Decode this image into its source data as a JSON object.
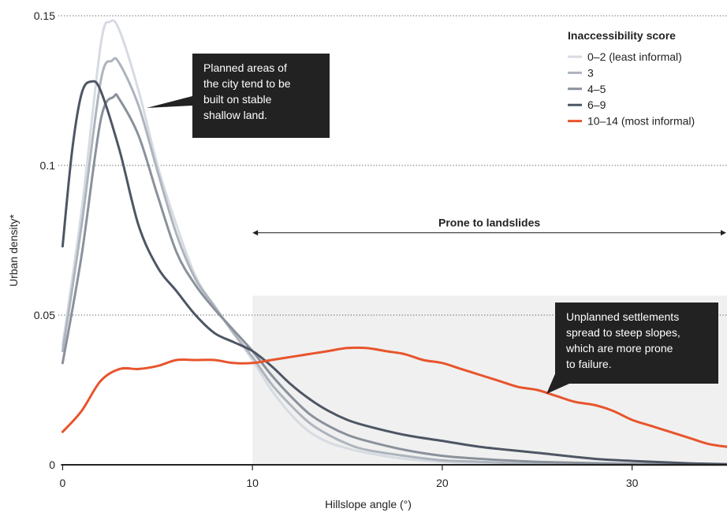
{
  "chart_data": {
    "type": "line",
    "xlabel": "Hillslope angle (°)",
    "ylabel": "Urban density*",
    "xlim": [
      -3.3,
      35
    ],
    "ylim": [
      0,
      0.15
    ],
    "x_ticks": [
      {
        "value": 0,
        "label": "0"
      },
      {
        "value": 10,
        "label": "10"
      },
      {
        "value": 20,
        "label": "20"
      },
      {
        "value": 30,
        "label": "30"
      }
    ],
    "y_ticks": [
      {
        "value": 0,
        "label": "0"
      },
      {
        "value": 0.05,
        "label": "0.05"
      },
      {
        "value": 0.1,
        "label": "0.1"
      },
      {
        "value": 0.15,
        "label": "0.15"
      }
    ],
    "grid": "horizontal dotted",
    "legend": {
      "title": "Inaccessibility score",
      "placement": "top-right"
    },
    "series": [
      {
        "name": "0–2 (least informal)",
        "color": "#d6dbe2",
        "points": [
          [
            0,
            0.04
          ],
          [
            1,
            0.085
          ],
          [
            2,
            0.14
          ],
          [
            2.5,
            0.148
          ],
          [
            3,
            0.145
          ],
          [
            4,
            0.125
          ],
          [
            5,
            0.1
          ],
          [
            6,
            0.08
          ],
          [
            7,
            0.063
          ],
          [
            8,
            0.053
          ],
          [
            9,
            0.044
          ],
          [
            10,
            0.035
          ],
          [
            11,
            0.025
          ],
          [
            12,
            0.017
          ],
          [
            13,
            0.011
          ],
          [
            14,
            0.0075
          ],
          [
            15,
            0.0055
          ],
          [
            16,
            0.004
          ],
          [
            18,
            0.002
          ],
          [
            20,
            0.001
          ],
          [
            22,
            0.0005
          ],
          [
            25,
            0.0002
          ],
          [
            30,
            0
          ],
          [
            35,
            0
          ]
        ]
      },
      {
        "name": "3",
        "color": "#aeb4bd",
        "points": [
          [
            0,
            0.038
          ],
          [
            1,
            0.08
          ],
          [
            2,
            0.128
          ],
          [
            2.6,
            0.135
          ],
          [
            3,
            0.134
          ],
          [
            4,
            0.12
          ],
          [
            5,
            0.098
          ],
          [
            6,
            0.077
          ],
          [
            7,
            0.062
          ],
          [
            8,
            0.053
          ],
          [
            9,
            0.044
          ],
          [
            10,
            0.036
          ],
          [
            11,
            0.027
          ],
          [
            12,
            0.02
          ],
          [
            13,
            0.014
          ],
          [
            14,
            0.01
          ],
          [
            15,
            0.007
          ],
          [
            16,
            0.005
          ],
          [
            18,
            0.003
          ],
          [
            20,
            0.0015
          ],
          [
            22,
            0.001
          ],
          [
            25,
            0.0003
          ],
          [
            30,
            0
          ],
          [
            35,
            0
          ]
        ]
      },
      {
        "name": "4–5",
        "color": "#8a919b",
        "points": [
          [
            0,
            0.034
          ],
          [
            1,
            0.07
          ],
          [
            2,
            0.115
          ],
          [
            2.7,
            0.123
          ],
          [
            3,
            0.122
          ],
          [
            4,
            0.11
          ],
          [
            5,
            0.09
          ],
          [
            6,
            0.071
          ],
          [
            7,
            0.06
          ],
          [
            8,
            0.052
          ],
          [
            9,
            0.045
          ],
          [
            10,
            0.038
          ],
          [
            11,
            0.03
          ],
          [
            12,
            0.023
          ],
          [
            13,
            0.017
          ],
          [
            14,
            0.013
          ],
          [
            15,
            0.01
          ],
          [
            16,
            0.008
          ],
          [
            18,
            0.005
          ],
          [
            20,
            0.003
          ],
          [
            22,
            0.002
          ],
          [
            25,
            0.001
          ],
          [
            30,
            0.0003
          ],
          [
            35,
            0
          ]
        ]
      },
      {
        "name": "6–9",
        "color": "#4e5664",
        "points": [
          [
            0,
            0.073
          ],
          [
            0.5,
            0.105
          ],
          [
            1,
            0.124
          ],
          [
            1.5,
            0.128
          ],
          [
            2,
            0.125
          ],
          [
            3,
            0.105
          ],
          [
            4,
            0.08
          ],
          [
            5,
            0.066
          ],
          [
            6,
            0.058
          ],
          [
            7,
            0.05
          ],
          [
            8,
            0.044
          ],
          [
            9,
            0.041
          ],
          [
            10,
            0.038
          ],
          [
            11,
            0.033
          ],
          [
            12,
            0.027
          ],
          [
            13,
            0.022
          ],
          [
            14,
            0.018
          ],
          [
            15,
            0.015
          ],
          [
            16,
            0.013
          ],
          [
            18,
            0.01
          ],
          [
            20,
            0.008
          ],
          [
            22,
            0.006
          ],
          [
            25,
            0.004
          ],
          [
            28,
            0.002
          ],
          [
            30,
            0.0013
          ],
          [
            33,
            0.0005
          ],
          [
            35,
            0.0002
          ]
        ]
      },
      {
        "name": "10–14 (most informal)",
        "color": "#e8542c",
        "points": [
          [
            0,
            0.011
          ],
          [
            1,
            0.018
          ],
          [
            2,
            0.028
          ],
          [
            3,
            0.032
          ],
          [
            4,
            0.032
          ],
          [
            5,
            0.033
          ],
          [
            6,
            0.035
          ],
          [
            7,
            0.035
          ],
          [
            8,
            0.035
          ],
          [
            9,
            0.034
          ],
          [
            10,
            0.034
          ],
          [
            11,
            0.035
          ],
          [
            12,
            0.036
          ],
          [
            13,
            0.037
          ],
          [
            14,
            0.038
          ],
          [
            15,
            0.039
          ],
          [
            16,
            0.039
          ],
          [
            17,
            0.038
          ],
          [
            18,
            0.037
          ],
          [
            19,
            0.035
          ],
          [
            20,
            0.034
          ],
          [
            21,
            0.032
          ],
          [
            22,
            0.03
          ],
          [
            23,
            0.028
          ],
          [
            24,
            0.026
          ],
          [
            25,
            0.025
          ],
          [
            26,
            0.023
          ],
          [
            27,
            0.021
          ],
          [
            28,
            0.02
          ],
          [
            29,
            0.018
          ],
          [
            30,
            0.015
          ],
          [
            31,
            0.013
          ],
          [
            32,
            0.011
          ],
          [
            33,
            0.009
          ],
          [
            34,
            0.007
          ],
          [
            35,
            0.006
          ]
        ]
      }
    ],
    "shaded_region": {
      "x_start": 10,
      "x_end": 35,
      "y_top": 0.0565,
      "label": "Prone to landslides"
    },
    "annotations": [
      {
        "text": [
          "Planned areas of",
          "the city tend to be",
          "built on stable",
          "shallow land."
        ]
      },
      {
        "text": [
          "Unplanned settlements",
          "spread to steep slopes,",
          "which are more prone",
          "to failure."
        ]
      }
    ]
  }
}
